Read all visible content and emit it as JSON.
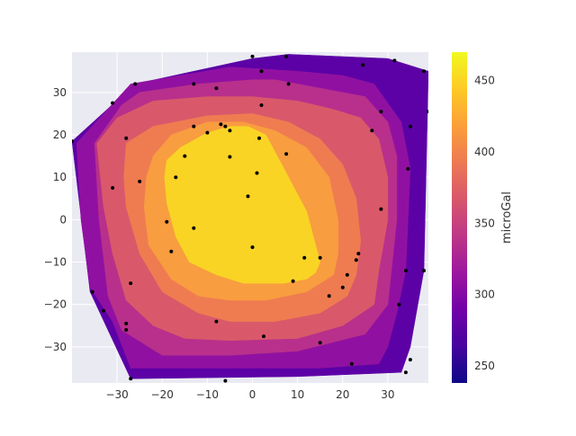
{
  "chart_data": {
    "type": "heatmap",
    "title": "",
    "xlabel": "",
    "ylabel": "",
    "xlim": [
      -40,
      39
    ],
    "ylim": [
      -38.5,
      39.5
    ],
    "x_ticks": [
      -30,
      -20,
      -10,
      0,
      10,
      20,
      30
    ],
    "y_ticks": [
      -30,
      -20,
      -10,
      0,
      10,
      20,
      30
    ],
    "grid": true,
    "colorbar": {
      "label": "microGal",
      "range": [
        238,
        470
      ],
      "ticks": [
        250,
        300,
        350,
        400,
        450
      ],
      "colors": [
        "#0d0887",
        "#46039f",
        "#7201a8",
        "#9c179e",
        "#bd3786",
        "#d8576b",
        "#ed7953",
        "#fb9f3a",
        "#fdca26",
        "#f0f921"
      ]
    },
    "contour_levels": [
      {
        "value": 270,
        "color": "#5c01a6",
        "polygon": [
          [
            -40,
            18.5
          ],
          [
            -26,
            32
          ],
          [
            0,
            38
          ],
          [
            8,
            39
          ],
          [
            30,
            38
          ],
          [
            39,
            35
          ],
          [
            38,
            -12
          ],
          [
            35,
            -30
          ],
          [
            33,
            -36
          ],
          [
            10,
            -37
          ],
          [
            -27,
            -37.5
          ],
          [
            -36,
            -17
          ]
        ]
      },
      {
        "value": 305,
        "color": "#9011a1",
        "polygon": [
          [
            -39,
            18
          ],
          [
            -27,
            32
          ],
          [
            -5,
            36
          ],
          [
            10,
            35
          ],
          [
            20,
            34
          ],
          [
            27,
            32
          ],
          [
            33,
            23
          ],
          [
            35,
            12
          ],
          [
            34,
            -12
          ],
          [
            32,
            -22
          ],
          [
            30,
            -30
          ],
          [
            28,
            -34
          ],
          [
            15,
            -35
          ],
          [
            -10,
            -35
          ],
          [
            -27,
            -35
          ],
          [
            -31,
            -24
          ],
          [
            -36,
            -16
          ],
          [
            -38,
            0
          ]
        ]
      },
      {
        "value": 330,
        "color": "#b8308b",
        "polygon": [
          [
            -35,
            18
          ],
          [
            -29,
            27
          ],
          [
            -25,
            30
          ],
          [
            -12,
            32
          ],
          [
            0,
            33
          ],
          [
            5,
            33
          ],
          [
            15,
            31
          ],
          [
            25,
            29
          ],
          [
            30,
            23
          ],
          [
            32,
            15
          ],
          [
            32,
            0
          ],
          [
            31,
            -10
          ],
          [
            30,
            -20
          ],
          [
            25,
            -27
          ],
          [
            10,
            -31
          ],
          [
            -5,
            -32
          ],
          [
            -20,
            -32
          ],
          [
            -29,
            -26
          ],
          [
            -32,
            -18
          ],
          [
            -34,
            0
          ]
        ]
      },
      {
        "value": 360,
        "color": "#d9596a",
        "polygon": [
          [
            -34.5,
            18
          ],
          [
            -30,
            24
          ],
          [
            -22,
            28
          ],
          [
            -10,
            29
          ],
          [
            0,
            29
          ],
          [
            10,
            28
          ],
          [
            18,
            26
          ],
          [
            24,
            24
          ],
          [
            28,
            19
          ],
          [
            30,
            10
          ],
          [
            30,
            0
          ],
          [
            28,
            -12
          ],
          [
            27,
            -20
          ],
          [
            20,
            -25
          ],
          [
            10,
            -28
          ],
          [
            -5,
            -28.5
          ],
          [
            -15,
            -28
          ],
          [
            -22,
            -25
          ],
          [
            -28,
            -19
          ],
          [
            -31,
            -8
          ],
          [
            -33,
            3
          ]
        ]
      },
      {
        "value": 390,
        "color": "#ef7c51",
        "polygon": [
          [
            -28,
            18
          ],
          [
            -22,
            22
          ],
          [
            -10,
            24.5
          ],
          [
            0,
            25
          ],
          [
            8,
            23
          ],
          [
            15,
            19
          ],
          [
            20,
            13
          ],
          [
            23,
            5
          ],
          [
            24,
            -5
          ],
          [
            23,
            -13
          ],
          [
            21,
            -18
          ],
          [
            15,
            -22
          ],
          [
            5,
            -24
          ],
          [
            -5,
            -24
          ],
          [
            -12,
            -22
          ],
          [
            -20,
            -17
          ],
          [
            -25,
            -8
          ],
          [
            -28,
            3
          ],
          [
            -28.5,
            10
          ]
        ]
      },
      {
        "value": 420,
        "color": "#f89d40",
        "polygon": [
          [
            -22,
            15
          ],
          [
            -18,
            20
          ],
          [
            -10,
            23
          ],
          [
            -2,
            23
          ],
          [
            5,
            21
          ],
          [
            12,
            17
          ],
          [
            17,
            10
          ],
          [
            19,
            0
          ],
          [
            19,
            -8
          ],
          [
            18,
            -13
          ],
          [
            12,
            -17
          ],
          [
            3,
            -19
          ],
          [
            -5,
            -19
          ],
          [
            -12,
            -18
          ],
          [
            -18,
            -14
          ],
          [
            -23,
            -6
          ],
          [
            -24,
            3
          ],
          [
            -23.5,
            10
          ]
        ]
      },
      {
        "value": 450,
        "color": "#f9d424",
        "polygon": [
          [
            -19,
            14
          ],
          [
            -16,
            17
          ],
          [
            -10,
            20.5
          ],
          [
            -5,
            22
          ],
          [
            -1,
            22
          ],
          [
            3,
            20
          ],
          [
            6,
            14
          ],
          [
            9,
            8
          ],
          [
            12,
            2
          ],
          [
            14,
            -6
          ],
          [
            15,
            -10
          ],
          [
            14,
            -12.5
          ],
          [
            12,
            -14
          ],
          [
            7,
            -15
          ],
          [
            -2,
            -15
          ],
          [
            -8,
            -13
          ],
          [
            -14,
            -10
          ],
          [
            -17,
            -4
          ],
          [
            -19,
            4
          ],
          [
            -19.5,
            10
          ]
        ]
      }
    ],
    "points": [
      [
        -40,
        18.5
      ],
      [
        -31,
        27.5
      ],
      [
        -26,
        32
      ],
      [
        -28,
        19.2
      ],
      [
        -31,
        7.5
      ],
      [
        -25,
        9
      ],
      [
        -35.5,
        -17
      ],
      [
        -33,
        -21.5
      ],
      [
        -28,
        -24.5
      ],
      [
        -28,
        -26
      ],
      [
        -27,
        -15
      ],
      [
        -27,
        -37.5
      ],
      [
        -13,
        32
      ],
      [
        -13,
        22
      ],
      [
        -8,
        31
      ],
      [
        -15,
        15
      ],
      [
        -17,
        10
      ],
      [
        -19,
        -0.5
      ],
      [
        -18,
        -7.5
      ],
      [
        -13,
        -2
      ],
      [
        -10,
        20.5
      ],
      [
        -7,
        22.5
      ],
      [
        -6,
        22
      ],
      [
        -5,
        21
      ],
      [
        -5,
        14.8
      ],
      [
        -8,
        -24
      ],
      [
        -6,
        -38
      ],
      [
        0,
        38.5
      ],
      [
        2,
        35
      ],
      [
        2,
        27
      ],
      [
        1.5,
        19.2
      ],
      [
        1,
        11
      ],
      [
        -1,
        5.5
      ],
      [
        0,
        -6.5
      ],
      [
        2.5,
        -27.5
      ],
      [
        7.5,
        38.5
      ],
      [
        8,
        32
      ],
      [
        7.5,
        15.5
      ],
      [
        9,
        -14.5
      ],
      [
        11.5,
        -9
      ],
      [
        15,
        -9
      ],
      [
        15,
        -29
      ],
      [
        17,
        -18
      ],
      [
        20,
        -16
      ],
      [
        21,
        -13
      ],
      [
        22,
        -34
      ],
      [
        23,
        -9.5
      ],
      [
        23.5,
        -8
      ],
      [
        24.5,
        36.5
      ],
      [
        26.5,
        21
      ],
      [
        28.5,
        25.5
      ],
      [
        28.5,
        2.5
      ],
      [
        31.5,
        37.5
      ],
      [
        32.5,
        -20
      ],
      [
        34,
        -36
      ],
      [
        34,
        -12
      ],
      [
        34.5,
        12
      ],
      [
        35,
        -33
      ],
      [
        35,
        22
      ],
      [
        38,
        35
      ],
      [
        38,
        -12
      ],
      [
        39,
        25.5
      ]
    ]
  }
}
